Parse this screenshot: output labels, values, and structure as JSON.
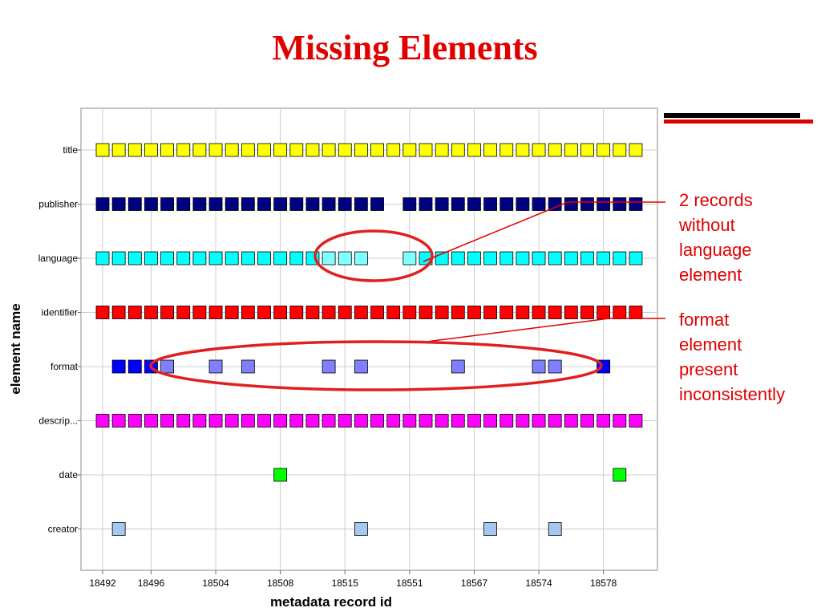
{
  "slide_title": "Missing Elements",
  "annotations": {
    "language": [
      "2 records",
      "without",
      "language",
      "element"
    ],
    "format": [
      "format",
      "element",
      "present",
      "inconsistently"
    ]
  },
  "colors": {
    "title_red": "#e00000",
    "annotation_red": "#e00000",
    "ellipse": "#e02020",
    "title_marker": "#ffff00",
    "publisher_marker": "#000080",
    "language_marker": "#00ffff",
    "language_faded_marker": "#80ffff",
    "identifier_marker": "#ff0000",
    "format_marker": "#0000ff",
    "format_faded_marker": "#7f7fff",
    "description_marker": "#ff00ff",
    "date_marker": "#00ff00",
    "creator_marker": "#a6c8f0"
  },
  "chart_data": {
    "type": "scatter",
    "xlabel": "metadata record id",
    "ylabel": "element name",
    "x_tick_labels": [
      "18492",
      "18496",
      "18504",
      "18508",
      "18515",
      "18551",
      "18567",
      "18574",
      "18578"
    ],
    "record_count": 34,
    "categories": [
      "title",
      "publisher",
      "language",
      "identifier",
      "format",
      "descrip...",
      "date",
      "creator"
    ],
    "grid": true,
    "series": [
      {
        "name": "title",
        "color": "#ffff00",
        "present_indices": [
          0,
          1,
          2,
          3,
          4,
          5,
          6,
          7,
          8,
          9,
          10,
          11,
          12,
          13,
          14,
          15,
          16,
          17,
          18,
          19,
          20,
          21,
          22,
          23,
          24,
          25,
          26,
          27,
          28,
          29,
          30,
          31,
          32,
          33
        ]
      },
      {
        "name": "publisher",
        "color": "#000080",
        "present_indices": [
          0,
          1,
          2,
          3,
          4,
          5,
          6,
          7,
          8,
          9,
          10,
          11,
          12,
          13,
          14,
          15,
          16,
          17,
          19,
          20,
          21,
          22,
          23,
          24,
          25,
          26,
          27,
          28,
          29,
          30,
          31,
          32,
          33
        ]
      },
      {
        "name": "language",
        "color": "#00ffff",
        "faded_color": "#80ffff",
        "faded_indices": [
          14,
          15,
          16,
          19
        ],
        "present_indices": [
          0,
          1,
          2,
          3,
          4,
          5,
          6,
          7,
          8,
          9,
          10,
          11,
          12,
          13,
          14,
          15,
          16,
          19,
          20,
          21,
          22,
          23,
          24,
          25,
          26,
          27,
          28,
          29,
          30,
          31,
          32,
          33
        ]
      },
      {
        "name": "identifier",
        "color": "#ff0000",
        "present_indices": [
          0,
          1,
          2,
          3,
          4,
          5,
          6,
          7,
          8,
          9,
          10,
          11,
          12,
          13,
          14,
          15,
          16,
          17,
          18,
          19,
          20,
          21,
          22,
          23,
          24,
          25,
          26,
          27,
          28,
          29,
          30,
          31,
          32,
          33
        ]
      },
      {
        "name": "format",
        "color": "#0000ff",
        "faded_color": "#7f7fff",
        "faded_indices": [
          4,
          7,
          9,
          14,
          16,
          22,
          27,
          28
        ],
        "present_indices": [
          1,
          2,
          3,
          4,
          7,
          9,
          14,
          16,
          22,
          27,
          28,
          31
        ]
      },
      {
        "name": "descrip...",
        "color": "#ff00ff",
        "present_indices": [
          0,
          1,
          2,
          3,
          4,
          5,
          6,
          7,
          8,
          9,
          10,
          11,
          12,
          13,
          14,
          15,
          16,
          17,
          18,
          19,
          20,
          21,
          22,
          23,
          24,
          25,
          26,
          27,
          28,
          29,
          30,
          31,
          32,
          33
        ]
      },
      {
        "name": "date",
        "color": "#00ff00",
        "present_indices": [
          11,
          32
        ]
      },
      {
        "name": "creator",
        "color": "#a6c8f0",
        "present_indices": [
          1,
          16,
          24,
          28
        ]
      }
    ]
  }
}
